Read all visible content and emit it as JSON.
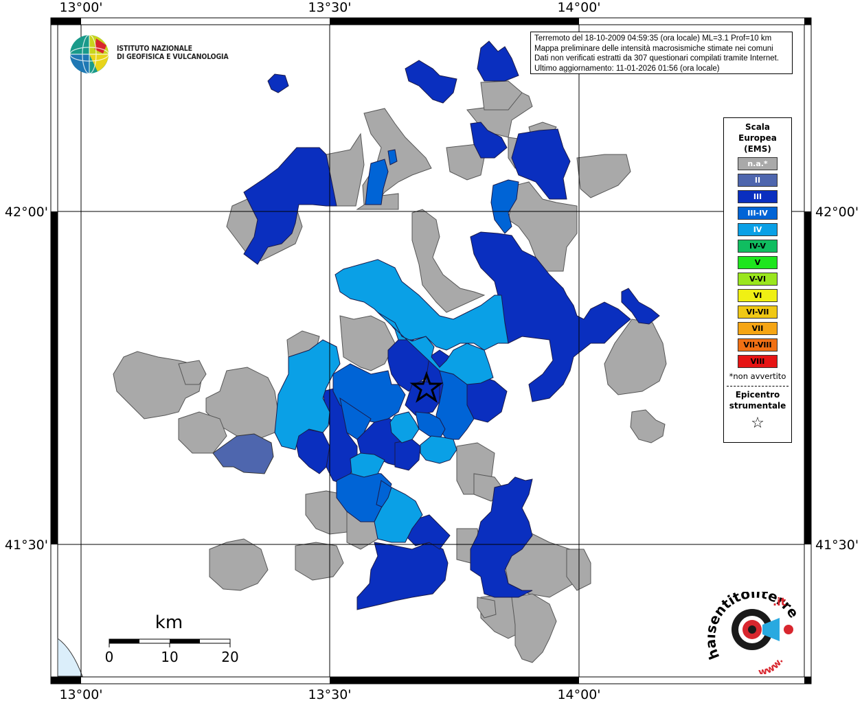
{
  "top_coords": {
    "lon1": "13°00'",
    "lon2": "13°30'",
    "lon3": "14°00'"
  },
  "bottom_coords": {
    "lon1": "13°00'",
    "lon2": "13°30'",
    "lon3": "14°00'"
  },
  "left_coords": {
    "lat1": "42°00'",
    "lat2": "41°30'"
  },
  "right_coords": {
    "lat1": "42°00'",
    "lat2": "41°30'"
  },
  "info": {
    "line1": "Terremoto del 18-10-2009 04:59:35 (ora locale) ML=3.1 Prof=10 km",
    "line2": "Mappa preliminare delle intensità macrosismiche stimate nei comuni",
    "line3": "Dati non verificati estratti da 307 questionari compilati tramite Internet.",
    "line4": "Ultimo aggiornamento: 11-01-2026 01:56 (ora locale)"
  },
  "logo": {
    "line1": "ISTITUTO NAZIONALE",
    "line2": "DI GEOFISICA E VULCANOLOGIA"
  },
  "legend": {
    "title1": "Scala",
    "title2": "Europea",
    "title3": "(EMS)",
    "items": [
      {
        "label": "n.a.*",
        "color": "#a9a9a9",
        "text": "#ffffff"
      },
      {
        "label": "II",
        "color": "#4e66ae",
        "text": "#ffffff"
      },
      {
        "label": "III",
        "color": "#0a2fbf",
        "text": "#ffffff"
      },
      {
        "label": "III-IV",
        "color": "#0064d6",
        "text": "#ffffff"
      },
      {
        "label": "IV",
        "color": "#0aa0e6",
        "text": "#ffffff"
      },
      {
        "label": "IV-V",
        "color": "#10bd60",
        "text": "#000000"
      },
      {
        "label": "V",
        "color": "#1ee61e",
        "text": "#000000"
      },
      {
        "label": "V-VI",
        "color": "#9ae61e",
        "text": "#000000"
      },
      {
        "label": "VI",
        "color": "#f0f014",
        "text": "#000000"
      },
      {
        "label": "VI-VII",
        "color": "#f0c814",
        "text": "#000000"
      },
      {
        "label": "VII",
        "color": "#f5a514",
        "text": "#000000"
      },
      {
        "label": "VII-VIII",
        "color": "#f07014",
        "text": "#000000"
      },
      {
        "label": "VIII",
        "color": "#e61414",
        "text": "#000000"
      }
    ],
    "note": "*non avvertito",
    "epi1": "Epicentro",
    "epi2": "strumentale",
    "star": "☆"
  },
  "scale": {
    "unit": "km",
    "t0": "0",
    "t1": "10",
    "t2": "20"
  },
  "hst": {
    "main": "haisentitoilterremoto",
    "it": ".it",
    "www": "www."
  },
  "colors": {
    "na": "#a9a9a9",
    "ii": "#4e66ae",
    "iii": "#0a2fbf",
    "iii_iv": "#0064d6",
    "iv": "#0aa0e6",
    "sea": "#dbeefa"
  }
}
